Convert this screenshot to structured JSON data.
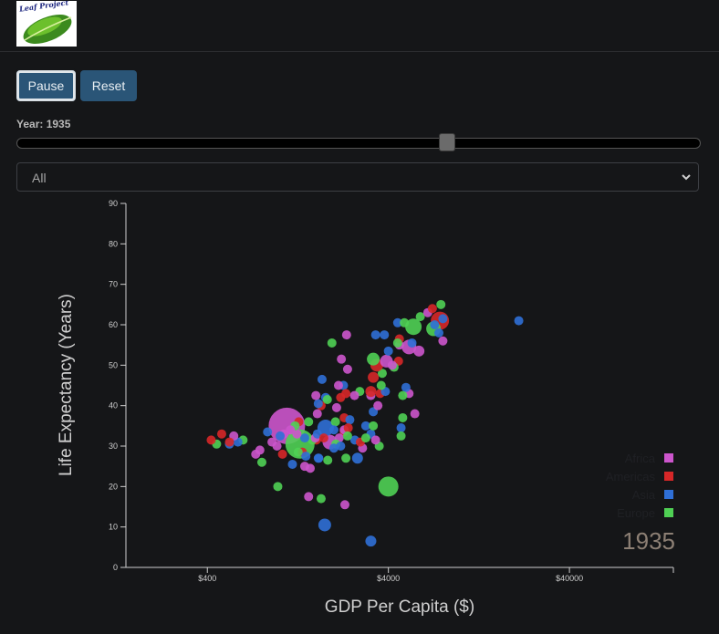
{
  "logo": {
    "text": "Leaf Project"
  },
  "controls": {
    "pause_label": "Pause",
    "reset_label": "Reset",
    "year_label": "Year: 1935",
    "year_slider_fraction": 0.632,
    "filter_value": "All"
  },
  "colors": {
    "Africa": "#cc55cc",
    "Americas": "#d62728",
    "Asia": "#2f6fd6",
    "Europe": "#4fd054"
  },
  "chart_data": {
    "type": "scatter",
    "year": "1935",
    "xlabel": "GDP Per Capita ($)",
    "ylabel": "Life Expectancy (Years)",
    "xscale": "log",
    "xlim": [
      142,
      150000
    ],
    "ylim": [
      0,
      90
    ],
    "xticks": [
      400,
      4000,
      40000
    ],
    "xtick_labels": [
      "$400",
      "$4000",
      "$40000"
    ],
    "yticks": [
      0,
      10,
      20,
      30,
      40,
      50,
      60,
      70,
      80,
      90
    ],
    "legend": [
      "Africa",
      "Americas",
      "Asia",
      "Europe"
    ],
    "legend_position": "bottom-right",
    "points": [
      {
        "c": "Africa",
        "x": 1100,
        "y": 35,
        "r": 20
      },
      {
        "c": "Europe",
        "x": 1300,
        "y": 30.5,
        "r": 16
      },
      {
        "c": "Africa",
        "x": 1900,
        "y": 31,
        "r": 8
      },
      {
        "c": "Asia",
        "x": 1800,
        "y": 34.5,
        "r": 9
      },
      {
        "c": "Europe",
        "x": 4000,
        "y": 20,
        "r": 11
      },
      {
        "c": "Asia",
        "x": 1780,
        "y": 10.5,
        "r": 7
      },
      {
        "c": "Asia",
        "x": 3200,
        "y": 6.5,
        "r": 6
      },
      {
        "c": "Africa",
        "x": 2300,
        "y": 15.5,
        "r": 5
      },
      {
        "c": "Europe",
        "x": 1700,
        "y": 17,
        "r": 5
      },
      {
        "c": "Africa",
        "x": 1450,
        "y": 17.5,
        "r": 5
      },
      {
        "c": "Europe",
        "x": 980,
        "y": 20,
        "r": 5
      },
      {
        "c": "Europe",
        "x": 800,
        "y": 26,
        "r": 5
      },
      {
        "c": "Asia",
        "x": 1180,
        "y": 25.5,
        "r": 5
      },
      {
        "c": "Africa",
        "x": 1480,
        "y": 24.5,
        "r": 5
      },
      {
        "c": "Asia",
        "x": 1640,
        "y": 27,
        "r": 5
      },
      {
        "c": "Europe",
        "x": 1850,
        "y": 26.5,
        "r": 5
      },
      {
        "c": "Asia",
        "x": 2700,
        "y": 27,
        "r": 6
      },
      {
        "c": "Europe",
        "x": 2330,
        "y": 27,
        "r": 5
      },
      {
        "c": "Europe",
        "x": 3560,
        "y": 30,
        "r": 5
      },
      {
        "c": "Africa",
        "x": 2880,
        "y": 29.5,
        "r": 5
      },
      {
        "c": "Asia",
        "x": 2610,
        "y": 31.5,
        "r": 5
      },
      {
        "c": "Americas",
        "x": 2280,
        "y": 33.5,
        "r": 5
      },
      {
        "c": "Africa",
        "x": 2140,
        "y": 32,
        "r": 5
      },
      {
        "c": "Europe",
        "x": 2050,
        "y": 30.5,
        "r": 5
      },
      {
        "c": "Asia",
        "x": 2000,
        "y": 29.5,
        "r": 5
      },
      {
        "c": "Americas",
        "x": 1600,
        "y": 31.5,
        "r": 5
      },
      {
        "c": "Europe",
        "x": 1520,
        "y": 31.5,
        "r": 5
      },
      {
        "c": "Asia",
        "x": 1380,
        "y": 32,
        "r": 5
      },
      {
        "c": "Africa",
        "x": 1250,
        "y": 33,
        "r": 5
      },
      {
        "c": "Americas",
        "x": 1280,
        "y": 36,
        "r": 5
      },
      {
        "c": "Europe",
        "x": 1220,
        "y": 35,
        "r": 5
      },
      {
        "c": "Africa",
        "x": 1060,
        "y": 33,
        "r": 5
      },
      {
        "c": "Asia",
        "x": 1010,
        "y": 32.5,
        "r": 5
      },
      {
        "c": "Africa",
        "x": 910,
        "y": 31,
        "r": 5
      },
      {
        "c": "Asia",
        "x": 860,
        "y": 33.5,
        "r": 5
      },
      {
        "c": "Africa",
        "x": 970,
        "y": 30,
        "r": 5
      },
      {
        "c": "Americas",
        "x": 1040,
        "y": 28,
        "r": 5
      },
      {
        "c": "Africa",
        "x": 780,
        "y": 29,
        "r": 5
      },
      {
        "c": "Africa",
        "x": 740,
        "y": 28,
        "r": 5
      },
      {
        "c": "Europe",
        "x": 630,
        "y": 31.5,
        "r": 5
      },
      {
        "c": "Asia",
        "x": 590,
        "y": 31,
        "r": 5
      },
      {
        "c": "Africa",
        "x": 560,
        "y": 32.5,
        "r": 5
      },
      {
        "c": "Americas",
        "x": 480,
        "y": 33,
        "r": 5
      },
      {
        "c": "Europe",
        "x": 450,
        "y": 30.5,
        "r": 5
      },
      {
        "c": "Americas",
        "x": 420,
        "y": 31.5,
        "r": 5
      },
      {
        "c": "Asia",
        "x": 530,
        "y": 30.5,
        "r": 5
      },
      {
        "c": "Americas",
        "x": 530,
        "y": 31,
        "r": 5
      },
      {
        "c": "Americas",
        "x": 1340,
        "y": 28.5,
        "r": 5
      },
      {
        "c": "Europe",
        "x": 1270,
        "y": 28.5,
        "r": 5
      },
      {
        "c": "Africa",
        "x": 1380,
        "y": 25,
        "r": 5
      },
      {
        "c": "Asia",
        "x": 1650,
        "y": 27,
        "r": 5
      },
      {
        "c": "Africa",
        "x": 1580,
        "y": 32,
        "r": 5
      },
      {
        "c": "Asia",
        "x": 1400,
        "y": 27.5,
        "r": 5
      },
      {
        "c": "Africa",
        "x": 1150,
        "y": 34,
        "r": 5
      },
      {
        "c": "Europe",
        "x": 1450,
        "y": 36,
        "r": 5
      },
      {
        "c": "Africa",
        "x": 1620,
        "y": 38,
        "r": 5
      },
      {
        "c": "Americas",
        "x": 1700,
        "y": 40,
        "r": 5
      },
      {
        "c": "Asia",
        "x": 1640,
        "y": 40.5,
        "r": 5
      },
      {
        "c": "Africa",
        "x": 1590,
        "y": 42.5,
        "r": 5
      },
      {
        "c": "Asia",
        "x": 1800,
        "y": 42,
        "r": 5
      },
      {
        "c": "Europe",
        "x": 1840,
        "y": 41.5,
        "r": 5
      },
      {
        "c": "Asia",
        "x": 1720,
        "y": 46.5,
        "r": 5
      },
      {
        "c": "Africa",
        "x": 2350,
        "y": 57.5,
        "r": 5
      },
      {
        "c": "Europe",
        "x": 1950,
        "y": 55.5,
        "r": 5
      },
      {
        "c": "Asia",
        "x": 3800,
        "y": 57.5,
        "r": 5
      },
      {
        "c": "Africa",
        "x": 2200,
        "y": 51.5,
        "r": 5
      },
      {
        "c": "Asia",
        "x": 2260,
        "y": 45,
        "r": 5
      },
      {
        "c": "Africa",
        "x": 2380,
        "y": 49,
        "r": 5
      },
      {
        "c": "Africa",
        "x": 2120,
        "y": 45,
        "r": 5
      },
      {
        "c": "Americas",
        "x": 2330,
        "y": 43,
        "r": 5
      },
      {
        "c": "Americas",
        "x": 2180,
        "y": 42,
        "r": 5
      },
      {
        "c": "Europe",
        "x": 2040,
        "y": 36,
        "r": 5
      },
      {
        "c": "Americas",
        "x": 2280,
        "y": 37,
        "r": 5
      },
      {
        "c": "Asia",
        "x": 2450,
        "y": 36.5,
        "r": 5
      },
      {
        "c": "Africa",
        "x": 2280,
        "y": 34,
        "r": 5
      },
      {
        "c": "Americas",
        "x": 2400,
        "y": 34.5,
        "r": 5
      },
      {
        "c": "Asia",
        "x": 2000,
        "y": 34,
        "r": 5
      },
      {
        "c": "Asia",
        "x": 2180,
        "y": 30,
        "r": 5
      },
      {
        "c": "Europe",
        "x": 2380,
        "y": 32.5,
        "r": 5
      },
      {
        "c": "Americas",
        "x": 2800,
        "y": 31,
        "r": 5
      },
      {
        "c": "Asia",
        "x": 3200,
        "y": 33,
        "r": 5
      },
      {
        "c": "Europe",
        "x": 3000,
        "y": 32,
        "r": 5
      },
      {
        "c": "Africa",
        "x": 3400,
        "y": 31.5,
        "r": 5
      },
      {
        "c": "Asia",
        "x": 3000,
        "y": 35,
        "r": 5
      },
      {
        "c": "Europe",
        "x": 3300,
        "y": 35,
        "r": 5
      },
      {
        "c": "Asia",
        "x": 3300,
        "y": 38.5,
        "r": 5
      },
      {
        "c": "Africa",
        "x": 3500,
        "y": 40,
        "r": 5
      },
      {
        "c": "Africa",
        "x": 3200,
        "y": 42.5,
        "r": 5
      },
      {
        "c": "Americas",
        "x": 3200,
        "y": 43.5,
        "r": 6
      },
      {
        "c": "Europe",
        "x": 2780,
        "y": 43.5,
        "r": 5
      },
      {
        "c": "Africa",
        "x": 2600,
        "y": 42.5,
        "r": 5
      },
      {
        "c": "Americas",
        "x": 3600,
        "y": 43,
        "r": 5
      },
      {
        "c": "Asia",
        "x": 3850,
        "y": 43.5,
        "r": 5
      },
      {
        "c": "Europe",
        "x": 3650,
        "y": 45,
        "r": 5
      },
      {
        "c": "Americas",
        "x": 3300,
        "y": 47,
        "r": 6
      },
      {
        "c": "Europe",
        "x": 3700,
        "y": 48,
        "r": 5
      },
      {
        "c": "Americas",
        "x": 3450,
        "y": 50,
        "r": 7
      },
      {
        "c": "Europe",
        "x": 3300,
        "y": 51.5,
        "r": 7
      },
      {
        "c": "Africa",
        "x": 3900,
        "y": 51,
        "r": 7
      },
      {
        "c": "Americas",
        "x": 4550,
        "y": 51,
        "r": 5
      },
      {
        "c": "Europe",
        "x": 4300,
        "y": 49.5,
        "r": 5
      },
      {
        "c": "Africa",
        "x": 4200,
        "y": 50,
        "r": 5
      },
      {
        "c": "Asia",
        "x": 4000,
        "y": 53.5,
        "r": 5
      },
      {
        "c": "Africa",
        "x": 4600,
        "y": 55,
        "r": 5
      },
      {
        "c": "Americas",
        "x": 4600,
        "y": 56.5,
        "r": 5
      },
      {
        "c": "Europe",
        "x": 4500,
        "y": 55.5,
        "r": 5
      },
      {
        "c": "Asia",
        "x": 3400,
        "y": 57.5,
        "r": 5
      },
      {
        "c": "Africa",
        "x": 5200,
        "y": 54.5,
        "r": 8
      },
      {
        "c": "Asia",
        "x": 5400,
        "y": 55.5,
        "r": 5
      },
      {
        "c": "Africa",
        "x": 5900,
        "y": 53.5,
        "r": 6
      },
      {
        "c": "Europe",
        "x": 5500,
        "y": 59.5,
        "r": 9
      },
      {
        "c": "Europe",
        "x": 6000,
        "y": 62,
        "r": 5
      },
      {
        "c": "Asia",
        "x": 4500,
        "y": 60.5,
        "r": 5
      },
      {
        "c": "Europe",
        "x": 4900,
        "y": 60.5,
        "r": 5
      },
      {
        "c": "Africa",
        "x": 6600,
        "y": 63,
        "r": 5
      },
      {
        "c": "Americas",
        "x": 7000,
        "y": 64,
        "r": 5
      },
      {
        "c": "Europe",
        "x": 7800,
        "y": 65,
        "r": 5
      },
      {
        "c": "Americas",
        "x": 7700,
        "y": 61,
        "r": 10
      },
      {
        "c": "Asia",
        "x": 8000,
        "y": 61.5,
        "r": 5
      },
      {
        "c": "Europe",
        "x": 7100,
        "y": 59,
        "r": 8
      },
      {
        "c": "Asia",
        "x": 7200,
        "y": 60,
        "r": 5
      },
      {
        "c": "Asia",
        "x": 7600,
        "y": 58,
        "r": 5
      },
      {
        "c": "Africa",
        "x": 8000,
        "y": 56,
        "r": 5
      },
      {
        "c": "Asia",
        "x": 21000,
        "y": 61,
        "r": 5
      },
      {
        "c": "Africa",
        "x": 5600,
        "y": 38,
        "r": 5
      },
      {
        "c": "Europe",
        "x": 4800,
        "y": 37,
        "r": 5
      },
      {
        "c": "Asia",
        "x": 4700,
        "y": 34.5,
        "r": 5
      },
      {
        "c": "Europe",
        "x": 4700,
        "y": 32.5,
        "r": 5
      },
      {
        "c": "Africa",
        "x": 5200,
        "y": 43,
        "r": 5
      },
      {
        "c": "Asia",
        "x": 5000,
        "y": 44.5,
        "r": 5
      },
      {
        "c": "Europe",
        "x": 4800,
        "y": 42.5,
        "r": 5
      },
      {
        "c": "Africa",
        "x": 2070,
        "y": 39.5,
        "r": 5
      },
      {
        "c": "Asia",
        "x": 1620,
        "y": 33,
        "r": 5
      },
      {
        "c": "Americas",
        "x": 1760,
        "y": 32,
        "r": 5
      }
    ]
  }
}
